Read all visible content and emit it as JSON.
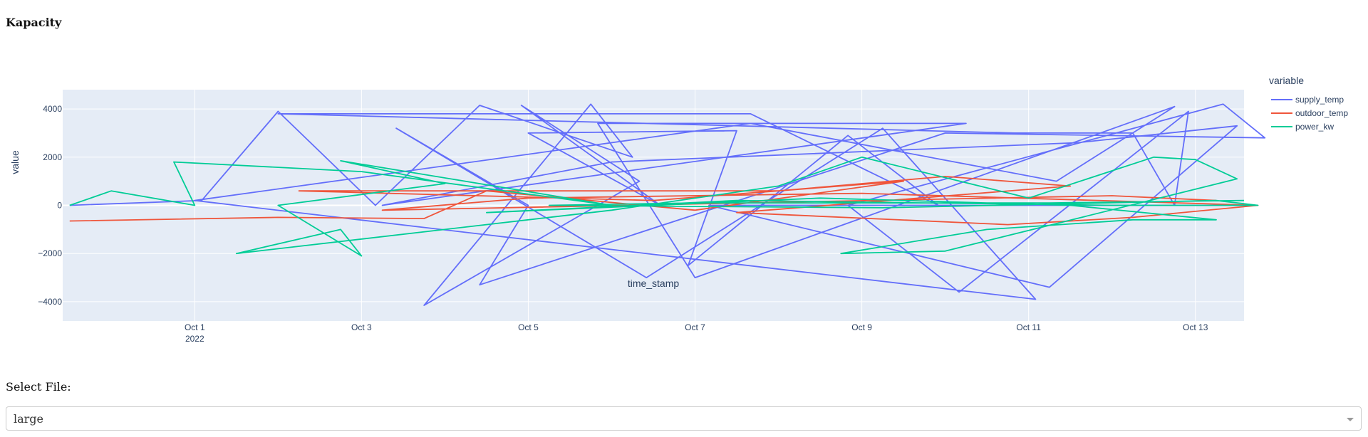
{
  "title": "Kapacity",
  "select": {
    "label": "Select File:",
    "value": "large"
  },
  "chart_data": {
    "type": "line",
    "xlabel": "time_stamp",
    "ylabel": "value",
    "legend_title": "variable",
    "legend_position": "top-right",
    "grid": true,
    "x_range": [
      "2022-09-29T10:00",
      "2022-10-13T14:00"
    ],
    "ylim": [
      -4800,
      4800
    ],
    "x_ticks": [
      {
        "date": "2022-10-01",
        "label": "Oct 1",
        "sublabel": "2022"
      },
      {
        "date": "2022-10-03",
        "label": "Oct 3",
        "sublabel": ""
      },
      {
        "date": "2022-10-05",
        "label": "Oct 5",
        "sublabel": ""
      },
      {
        "date": "2022-10-07",
        "label": "Oct 7",
        "sublabel": ""
      },
      {
        "date": "2022-10-09",
        "label": "Oct 9",
        "sublabel": ""
      },
      {
        "date": "2022-10-11",
        "label": "Oct 11",
        "sublabel": ""
      },
      {
        "date": "2022-10-13",
        "label": "Oct 13",
        "sublabel": ""
      }
    ],
    "y_ticks": [
      4000,
      2000,
      0,
      -2000,
      -4000
    ],
    "y_tick_labels": [
      "4000",
      "2000",
      "0",
      "−2000",
      "−4000"
    ],
    "series": [
      {
        "name": "supply_temp",
        "color": "#636efa",
        "points": [
          [
            "2022-09-29T12:00",
            0
          ],
          [
            "2022-10-01T02:00",
            200
          ],
          [
            "2022-10-02T00:00",
            3900
          ],
          [
            "2022-10-03T04:00",
            0
          ],
          [
            "2022-10-04T10:00",
            4150
          ],
          [
            "2022-10-06T06:00",
            2000
          ],
          [
            "2022-10-05T18:00",
            4200
          ],
          [
            "2022-10-03T18:00",
            -4150
          ],
          [
            "2022-10-06T08:00",
            1000
          ],
          [
            "2022-10-04T22:00",
            4150
          ],
          [
            "2022-10-06T14:00",
            0
          ],
          [
            "2022-10-05T00:00",
            3000
          ],
          [
            "2022-10-07T12:00",
            3100
          ],
          [
            "2022-10-06T22:00",
            -2500
          ],
          [
            "2022-10-08T20:00",
            2900
          ],
          [
            "2022-10-09T22:00",
            0
          ],
          [
            "2022-10-07T16:00",
            3800
          ],
          [
            "2022-10-02T00:00",
            3800
          ],
          [
            "2022-10-10T20:00",
            3000
          ],
          [
            "2022-10-12T06:00",
            3000
          ],
          [
            "2022-10-12T18:00",
            0
          ],
          [
            "2022-10-12T22:00",
            3900
          ],
          [
            "2022-10-10T04:00",
            -3600
          ],
          [
            "2022-10-08T20:00",
            0
          ],
          [
            "2022-10-13T08:00",
            4200
          ],
          [
            "2022-10-13T20:00",
            2800
          ],
          [
            "2022-10-10T00:00",
            3000
          ],
          [
            "2022-10-04T10:00",
            -3300
          ],
          [
            "2022-10-05T00:00",
            0
          ],
          [
            "2022-10-03T10:00",
            3200
          ],
          [
            "2022-10-06T10:00",
            -3000
          ],
          [
            "2022-10-09T06:00",
            3200
          ],
          [
            "2022-10-11T02:00",
            -3900
          ],
          [
            "2022-10-01T00:00",
            200
          ],
          [
            "2022-10-07T16:00",
            3400
          ],
          [
            "2022-10-11T08:00",
            1000
          ],
          [
            "2022-10-12T18:00",
            4100
          ],
          [
            "2022-10-07T00:00",
            -3000
          ],
          [
            "2022-10-05T20:00",
            3400
          ],
          [
            "2022-10-10T06:00",
            3400
          ],
          [
            "2022-10-03T06:00",
            0
          ],
          [
            "2022-10-06T00:00",
            1800
          ],
          [
            "2022-10-11T14:00",
            2600
          ],
          [
            "2022-10-13T12:00",
            3300
          ],
          [
            "2022-10-11T06:00",
            -3400
          ],
          [
            "2022-10-07T04:00",
            0
          ],
          [
            "2022-10-13T16:00",
            0
          ]
        ]
      },
      {
        "name": "outdoor_temp",
        "color": "#ef553b",
        "points": [
          [
            "2022-09-29T12:00",
            -650
          ],
          [
            "2022-10-02T00:00",
            -500
          ],
          [
            "2022-10-03T18:00",
            -550
          ],
          [
            "2022-10-04T12:00",
            600
          ],
          [
            "2022-10-07T00:00",
            -200
          ],
          [
            "2022-10-09T12:00",
            1000
          ],
          [
            "2022-10-06T12:00",
            200
          ],
          [
            "2022-10-02T06:00",
            600
          ],
          [
            "2022-10-08T00:00",
            600
          ],
          [
            "2022-10-10T00:00",
            1200
          ],
          [
            "2022-10-11T12:00",
            800
          ],
          [
            "2022-10-07T12:00",
            -300
          ],
          [
            "2022-10-10T18:00",
            -800
          ],
          [
            "2022-10-12T06:00",
            -500
          ],
          [
            "2022-10-13T18:00",
            0
          ],
          [
            "2022-10-09T00:00",
            500
          ],
          [
            "2022-10-05T00:00",
            300
          ],
          [
            "2022-10-03T06:00",
            -200
          ],
          [
            "2022-10-12T00:00",
            400
          ],
          [
            "2022-10-13T06:00",
            200
          ]
        ]
      },
      {
        "name": "power_kw",
        "color": "#00cc96",
        "points": [
          [
            "2022-09-29T12:00",
            0
          ],
          [
            "2022-09-30T00:00",
            600
          ],
          [
            "2022-10-01T00:00",
            0
          ],
          [
            "2022-09-30T18:00",
            1800
          ],
          [
            "2022-10-03T00:00",
            1400
          ],
          [
            "2022-10-06T00:00",
            0
          ],
          [
            "2022-10-02T18:00",
            1850
          ],
          [
            "2022-10-04T00:00",
            900
          ],
          [
            "2022-10-02T00:00",
            0
          ],
          [
            "2022-10-03T00:00",
            -2100
          ],
          [
            "2022-10-02T18:00",
            -1000
          ],
          [
            "2022-10-01T12:00",
            -2000
          ],
          [
            "2022-10-06T00:00",
            -200
          ],
          [
            "2022-10-08T00:00",
            800
          ],
          [
            "2022-10-09T00:00",
            2000
          ],
          [
            "2022-10-11T00:00",
            300
          ],
          [
            "2022-10-12T12:00",
            2000
          ],
          [
            "2022-10-13T00:00",
            1900
          ],
          [
            "2022-10-13T12:00",
            1100
          ],
          [
            "2022-10-10T00:00",
            -1900
          ],
          [
            "2022-10-08T18:00",
            -2000
          ],
          [
            "2022-10-10T12:00",
            -1000
          ],
          [
            "2022-10-12T06:00",
            -600
          ],
          [
            "2022-10-13T06:00",
            -600
          ],
          [
            "2022-10-11T12:00",
            0
          ],
          [
            "2022-10-08T12:00",
            300
          ],
          [
            "2022-10-04T12:00",
            -300
          ],
          [
            "2022-10-07T12:00",
            200
          ],
          [
            "2022-10-12T00:00",
            0
          ],
          [
            "2022-10-13T18:00",
            0
          ],
          [
            "2022-10-13T06:00",
            200
          ],
          [
            "2022-10-09T06:00",
            -100
          ],
          [
            "2022-10-05T06:00",
            0
          ],
          [
            "2022-10-07T00:00",
            100
          ],
          [
            "2022-10-11T06:00",
            100
          ],
          [
            "2022-10-13T14:00",
            200
          ]
        ]
      }
    ]
  }
}
